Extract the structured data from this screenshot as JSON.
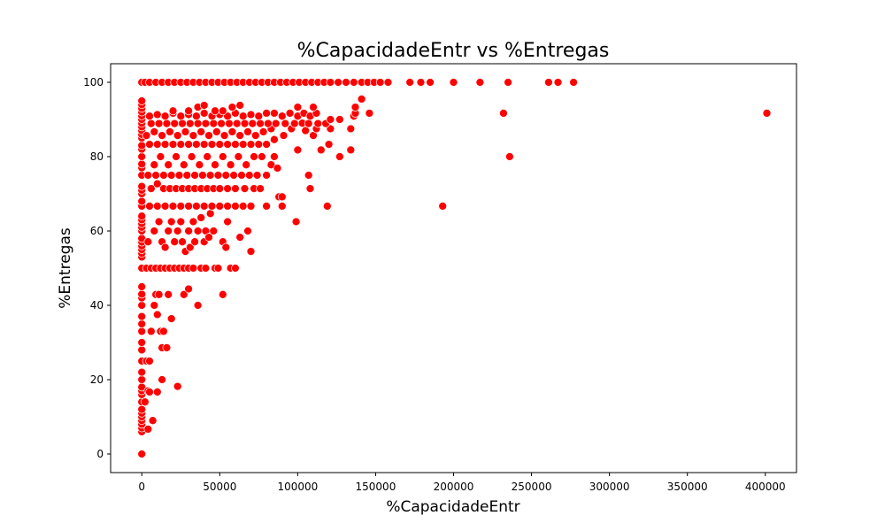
{
  "chart_data": {
    "type": "scatter",
    "title": "%CapacidadeEntr vs %Entregas",
    "xlabel": "%CapacidadeEntr",
    "ylabel": "%Entregas",
    "xlim": [
      -20000,
      420000
    ],
    "ylim": [
      -5,
      105
    ],
    "xticks": [
      0,
      50000,
      100000,
      150000,
      200000,
      250000,
      300000,
      350000,
      400000
    ],
    "yticks": [
      0,
      20,
      40,
      60,
      80,
      100
    ],
    "xtick_labels": [
      "0",
      "50000",
      "100000",
      "150000",
      "200000",
      "250000",
      "300000",
      "350000",
      "400000"
    ],
    "ytick_labels": [
      "0",
      "20",
      "40",
      "60",
      "80",
      "100"
    ],
    "grid": false,
    "marker_color": "#ff0000",
    "marker_edge_color": "#ffffff",
    "points": [
      [
        0,
        0
      ],
      [
        0,
        6
      ],
      [
        0,
        7
      ],
      [
        0,
        8
      ],
      [
        0,
        9
      ],
      [
        0,
        10
      ],
      [
        0,
        11
      ],
      [
        0,
        12
      ],
      [
        0,
        14
      ],
      [
        0,
        16
      ],
      [
        0,
        17
      ],
      [
        0,
        18
      ],
      [
        0,
        20
      ],
      [
        0,
        22
      ],
      [
        0,
        25
      ],
      [
        0,
        28
      ],
      [
        0,
        30
      ],
      [
        0,
        33
      ],
      [
        0,
        35
      ],
      [
        0,
        37
      ],
      [
        0,
        40
      ],
      [
        0,
        42
      ],
      [
        0,
        43
      ],
      [
        0,
        45
      ],
      [
        0,
        50
      ],
      [
        0,
        53
      ],
      [
        0,
        54
      ],
      [
        0,
        55
      ],
      [
        0,
        56
      ],
      [
        0,
        57
      ],
      [
        0,
        58
      ],
      [
        0,
        60
      ],
      [
        0,
        61
      ],
      [
        0,
        62
      ],
      [
        0,
        63
      ],
      [
        0,
        64
      ],
      [
        0,
        66.7
      ],
      [
        0,
        68
      ],
      [
        0,
        70
      ],
      [
        0,
        71
      ],
      [
        0,
        72
      ],
      [
        0,
        75
      ],
      [
        0,
        77
      ],
      [
        0,
        78
      ],
      [
        0,
        80
      ],
      [
        0,
        82
      ],
      [
        0,
        83
      ],
      [
        0,
        85
      ],
      [
        0,
        86
      ],
      [
        0,
        87
      ],
      [
        0,
        88
      ],
      [
        0,
        89
      ],
      [
        0,
        90
      ],
      [
        0,
        91
      ],
      [
        0,
        92
      ],
      [
        0,
        93
      ],
      [
        0,
        94
      ],
      [
        0,
        95
      ],
      [
        0,
        100
      ],
      [
        2000,
        14
      ],
      [
        3000,
        25
      ],
      [
        4000,
        17
      ],
      [
        4000,
        6.7
      ],
      [
        5000,
        25
      ],
      [
        5000,
        16.7
      ],
      [
        6000,
        33
      ],
      [
        7000,
        9
      ],
      [
        8000,
        40
      ],
      [
        9000,
        42.9
      ],
      [
        10000,
        16.7
      ],
      [
        10000,
        37.5
      ],
      [
        11000,
        42.9
      ],
      [
        12000,
        33
      ],
      [
        13000,
        28.6
      ],
      [
        13000,
        20
      ],
      [
        14000,
        33
      ],
      [
        16000,
        28.6
      ],
      [
        17000,
        42.9
      ],
      [
        19000,
        36.4
      ],
      [
        23000,
        18.2
      ],
      [
        27000,
        42.9
      ],
      [
        30000,
        44.4
      ],
      [
        36000,
        40
      ],
      [
        52000,
        42.9
      ],
      [
        3000,
        50
      ],
      [
        6000,
        50
      ],
      [
        9000,
        50
      ],
      [
        12000,
        50
      ],
      [
        15000,
        50
      ],
      [
        18000,
        50
      ],
      [
        21000,
        50
      ],
      [
        24000,
        50
      ],
      [
        27000,
        50
      ],
      [
        30000,
        50
      ],
      [
        33000,
        50
      ],
      [
        38000,
        50
      ],
      [
        41000,
        50
      ],
      [
        47000,
        50
      ],
      [
        49000,
        50
      ],
      [
        57000,
        50
      ],
      [
        60000,
        50
      ],
      [
        4000,
        57.1
      ],
      [
        8000,
        60
      ],
      [
        11000,
        62.5
      ],
      [
        13000,
        57.1
      ],
      [
        15000,
        55.6
      ],
      [
        17000,
        60
      ],
      [
        19000,
        62.5
      ],
      [
        21000,
        57.1
      ],
      [
        23000,
        60
      ],
      [
        25000,
        62.5
      ],
      [
        26000,
        57.1
      ],
      [
        28000,
        54.5
      ],
      [
        30000,
        60
      ],
      [
        31000,
        55.6
      ],
      [
        33000,
        62.5
      ],
      [
        34000,
        57.1
      ],
      [
        36000,
        60
      ],
      [
        38000,
        63.6
      ],
      [
        40000,
        57.1
      ],
      [
        41000,
        60
      ],
      [
        43000,
        58.3
      ],
      [
        44000,
        64.7
      ],
      [
        46000,
        60
      ],
      [
        52000,
        57.1
      ],
      [
        54000,
        55.6
      ],
      [
        55000,
        62.5
      ],
      [
        63000,
        58.3
      ],
      [
        68000,
        60
      ],
      [
        70000,
        54.5
      ],
      [
        5000,
        66.7
      ],
      [
        10000,
        66.7
      ],
      [
        15000,
        66.7
      ],
      [
        20000,
        66.7
      ],
      [
        25000,
        66.7
      ],
      [
        30000,
        66.7
      ],
      [
        35000,
        66.7
      ],
      [
        40000,
        66.7
      ],
      [
        45000,
        66.7
      ],
      [
        50000,
        66.7
      ],
      [
        55000,
        66.7
      ],
      [
        60000,
        66.7
      ],
      [
        65000,
        66.7
      ],
      [
        70000,
        66.7
      ],
      [
        80000,
        66.7
      ],
      [
        90000,
        66.7
      ],
      [
        119000,
        66.7
      ],
      [
        193000,
        66.7
      ],
      [
        99000,
        62.5
      ],
      [
        6000,
        71.4
      ],
      [
        10000,
        72.7
      ],
      [
        14000,
        71.4
      ],
      [
        18000,
        71.4
      ],
      [
        22000,
        71.4
      ],
      [
        26000,
        71.4
      ],
      [
        30000,
        71.4
      ],
      [
        34000,
        71.4
      ],
      [
        38000,
        71.4
      ],
      [
        42000,
        71.4
      ],
      [
        46000,
        71.4
      ],
      [
        50000,
        71.4
      ],
      [
        55000,
        71.4
      ],
      [
        60000,
        71.4
      ],
      [
        66000,
        71.4
      ],
      [
        72000,
        71.4
      ],
      [
        76000,
        71.4
      ],
      [
        88000,
        69.2
      ],
      [
        90000,
        69.2
      ],
      [
        107000,
        75
      ],
      [
        108000,
        71.4
      ],
      [
        4000,
        75
      ],
      [
        9000,
        75
      ],
      [
        14000,
        75
      ],
      [
        19000,
        75
      ],
      [
        24000,
        75
      ],
      [
        29000,
        75
      ],
      [
        34000,
        75
      ],
      [
        39000,
        75
      ],
      [
        44000,
        75
      ],
      [
        49000,
        75
      ],
      [
        54000,
        75
      ],
      [
        59000,
        75
      ],
      [
        64000,
        75
      ],
      [
        69000,
        75
      ],
      [
        74000,
        75
      ],
      [
        80000,
        75
      ],
      [
        83000,
        77.8
      ],
      [
        87000,
        76.9
      ],
      [
        8000,
        77.8
      ],
      [
        12000,
        80
      ],
      [
        17000,
        77.8
      ],
      [
        22000,
        80
      ],
      [
        27000,
        77.8
      ],
      [
        32000,
        80
      ],
      [
        37000,
        77.8
      ],
      [
        42000,
        80
      ],
      [
        47000,
        77.8
      ],
      [
        52000,
        80
      ],
      [
        57000,
        77.8
      ],
      [
        62000,
        80
      ],
      [
        67000,
        77.8
      ],
      [
        72000,
        80
      ],
      [
        77000,
        80
      ],
      [
        85000,
        80
      ],
      [
        100000,
        81.8
      ],
      [
        115000,
        81.8
      ],
      [
        127000,
        80
      ],
      [
        134000,
        81.8
      ],
      [
        236000,
        80
      ],
      [
        5000,
        83.3
      ],
      [
        10000,
        83.3
      ],
      [
        15000,
        83.3
      ],
      [
        20000,
        83.3
      ],
      [
        25000,
        83.3
      ],
      [
        30000,
        83.3
      ],
      [
        35000,
        83.3
      ],
      [
        40000,
        83.3
      ],
      [
        45000,
        83.3
      ],
      [
        50000,
        83.3
      ],
      [
        55000,
        83.3
      ],
      [
        60000,
        83.3
      ],
      [
        65000,
        83.3
      ],
      [
        70000,
        83.3
      ],
      [
        75000,
        83.3
      ],
      [
        80000,
        83.3
      ],
      [
        85000,
        84.6
      ],
      [
        91000,
        85.7
      ],
      [
        110000,
        85.7
      ],
      [
        120000,
        83.3
      ],
      [
        3000,
        85.7
      ],
      [
        8000,
        86.7
      ],
      [
        13000,
        85.7
      ],
      [
        18000,
        86.7
      ],
      [
        23000,
        85.7
      ],
      [
        28000,
        86.7
      ],
      [
        33000,
        85.7
      ],
      [
        38000,
        86.7
      ],
      [
        43000,
        85.7
      ],
      [
        48000,
        86.7
      ],
      [
        53000,
        85.7
      ],
      [
        58000,
        86.7
      ],
      [
        63000,
        85.7
      ],
      [
        68000,
        86.7
      ],
      [
        73000,
        85.7
      ],
      [
        78000,
        86.7
      ],
      [
        83000,
        87.5
      ],
      [
        96000,
        87.5
      ],
      [
        105000,
        87
      ],
      [
        112000,
        87.5
      ],
      [
        121000,
        87.5
      ],
      [
        134000,
        87.5
      ],
      [
        6000,
        88.9
      ],
      [
        11000,
        88.9
      ],
      [
        16000,
        88.9
      ],
      [
        21000,
        88.9
      ],
      [
        26000,
        88.9
      ],
      [
        31000,
        88.9
      ],
      [
        36000,
        88.9
      ],
      [
        41000,
        88.9
      ],
      [
        46000,
        88.9
      ],
      [
        51000,
        88.9
      ],
      [
        56000,
        88.9
      ],
      [
        61000,
        88.9
      ],
      [
        66000,
        88.9
      ],
      [
        71000,
        88.9
      ],
      [
        76000,
        88.9
      ],
      [
        81000,
        88.9
      ],
      [
        86000,
        88.9
      ],
      [
        92000,
        88.9
      ],
      [
        98000,
        88.9
      ],
      [
        103000,
        89
      ],
      [
        107000,
        88.9
      ],
      [
        113000,
        88.9
      ],
      [
        118000,
        88.9
      ],
      [
        5000,
        90.9
      ],
      [
        10000,
        91.3
      ],
      [
        15000,
        90.9
      ],
      [
        20000,
        91.7
      ],
      [
        25000,
        90.9
      ],
      [
        30000,
        91.3
      ],
      [
        35000,
        90.9
      ],
      [
        40000,
        91.7
      ],
      [
        45000,
        90.9
      ],
      [
        50000,
        91.3
      ],
      [
        55000,
        90.9
      ],
      [
        60000,
        91.7
      ],
      [
        65000,
        90.9
      ],
      [
        70000,
        91.3
      ],
      [
        75000,
        90.9
      ],
      [
        80000,
        91.7
      ],
      [
        85000,
        91.7
      ],
      [
        90000,
        90.9
      ],
      [
        95000,
        91.7
      ],
      [
        100000,
        90.9
      ],
      [
        104000,
        91.7
      ],
      [
        108000,
        90.9
      ],
      [
        112000,
        91.7
      ],
      [
        121000,
        90
      ],
      [
        127000,
        90
      ],
      [
        136000,
        90.9
      ],
      [
        137000,
        91.7
      ],
      [
        146000,
        91.7
      ],
      [
        232000,
        91.7
      ],
      [
        401000,
        91.7
      ],
      [
        20000,
        92.3
      ],
      [
        30000,
        92.3
      ],
      [
        36000,
        93.3
      ],
      [
        40000,
        93.8
      ],
      [
        47000,
        92.3
      ],
      [
        52000,
        92.3
      ],
      [
        58000,
        93.3
      ],
      [
        63000,
        93.8
      ],
      [
        100000,
        93.3
      ],
      [
        110000,
        93.3
      ],
      [
        137000,
        93.3
      ],
      [
        141000,
        95.5
      ],
      [
        2000,
        100
      ],
      [
        5000,
        100
      ],
      [
        9000,
        100
      ],
      [
        13000,
        100
      ],
      [
        17000,
        100
      ],
      [
        21000,
        100
      ],
      [
        25000,
        100
      ],
      [
        29000,
        100
      ],
      [
        33000,
        100
      ],
      [
        37000,
        100
      ],
      [
        41000,
        100
      ],
      [
        45000,
        100
      ],
      [
        49000,
        100
      ],
      [
        53000,
        100
      ],
      [
        57000,
        100
      ],
      [
        61000,
        100
      ],
      [
        65000,
        100
      ],
      [
        69000,
        100
      ],
      [
        73000,
        100
      ],
      [
        77000,
        100
      ],
      [
        81000,
        100
      ],
      [
        85000,
        100
      ],
      [
        89000,
        100
      ],
      [
        93000,
        100
      ],
      [
        97000,
        100
      ],
      [
        101000,
        100
      ],
      [
        105000,
        100
      ],
      [
        109000,
        100
      ],
      [
        113000,
        100
      ],
      [
        117000,
        100
      ],
      [
        121000,
        100
      ],
      [
        126000,
        100
      ],
      [
        131000,
        100
      ],
      [
        136000,
        100
      ],
      [
        141000,
        100
      ],
      [
        145000,
        100
      ],
      [
        149000,
        100
      ],
      [
        153000,
        100
      ],
      [
        158000,
        100
      ],
      [
        172000,
        100
      ],
      [
        179000,
        100
      ],
      [
        185000,
        100
      ],
      [
        200000,
        100
      ],
      [
        217000,
        100
      ],
      [
        235000,
        100
      ],
      [
        261000,
        100
      ],
      [
        267000,
        100
      ],
      [
        277000,
        100
      ]
    ]
  }
}
